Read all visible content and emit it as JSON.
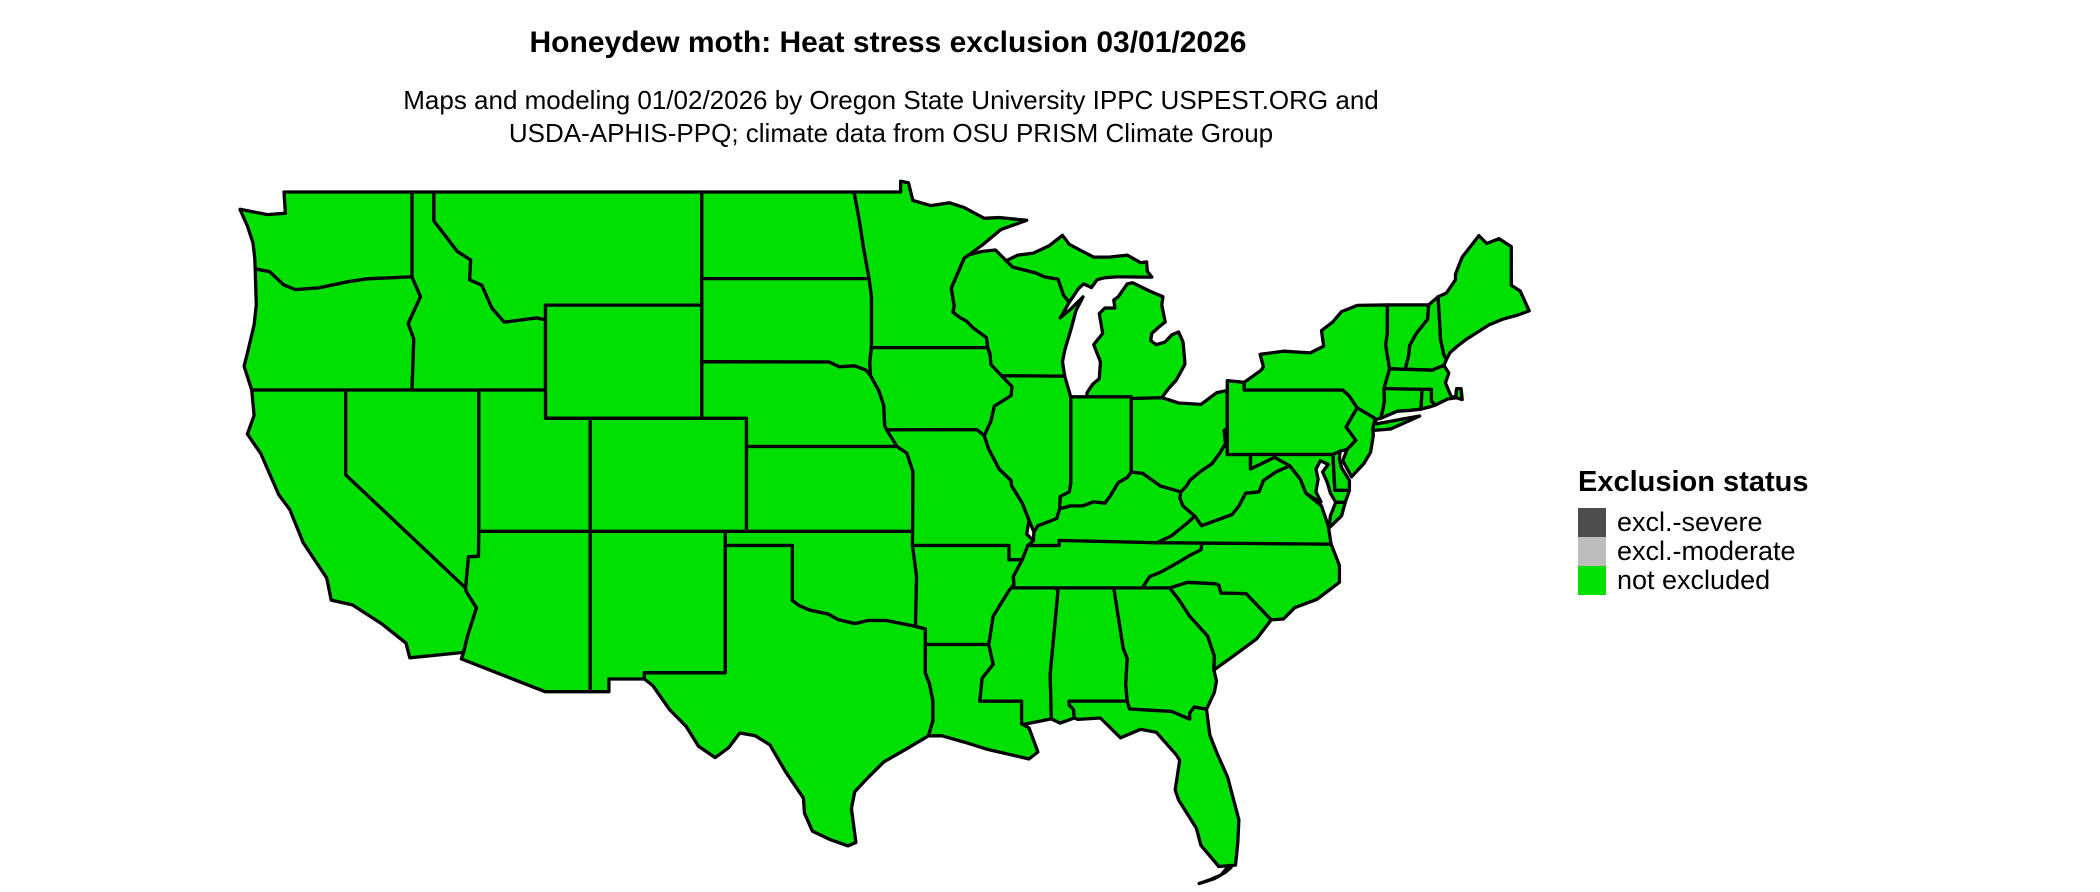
{
  "title": "Honeydew moth: Heat stress exclusion 03/01/2026",
  "subtitle": {
    "line1": "Maps and modeling 01/02/2026 by Oregon State University IPPC USPEST.ORG and",
    "line2": "USDA-APHIS-PPQ; climate data from OSU PRISM Climate Group"
  },
  "legend": {
    "title": "Exclusion status",
    "items": [
      {
        "label": "excl.-severe",
        "color": "#4d4d4d"
      },
      {
        "label": "excl.-moderate",
        "color": "#bdbdbd"
      },
      {
        "label": "not excluded",
        "color": "#00e000"
      }
    ]
  },
  "map": {
    "fill_status": "not excluded",
    "fill_color": "#00e000",
    "border_color": "#000000"
  }
}
